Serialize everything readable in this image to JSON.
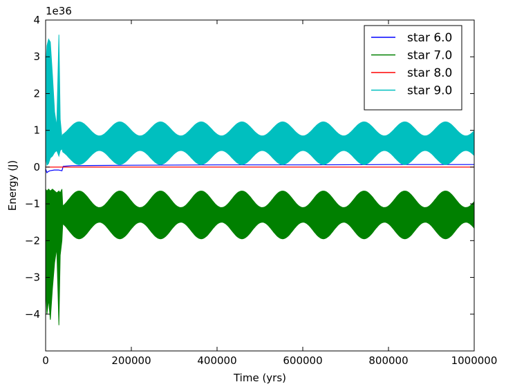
{
  "chart_data": {
    "type": "line",
    "title": "",
    "xlabel": "Time (yrs)",
    "ylabel": "Energy (J)",
    "y_offset_label": "1e36",
    "y_scale_exponent": 36,
    "xlim": [
      0,
      1000000
    ],
    "ylim": [
      -5,
      4
    ],
    "x_ticks": [
      0,
      200000,
      400000,
      600000,
      800000,
      1000000
    ],
    "x_tick_labels": [
      "0",
      "200000",
      "400000",
      "600000",
      "800000",
      "1000000"
    ],
    "y_ticks": [
      -4,
      -3,
      -2,
      -1,
      0,
      1,
      2,
      3,
      4
    ],
    "y_tick_labels": [
      "−4",
      "−3",
      "−2",
      "−1",
      "0",
      "1",
      "2",
      "3",
      "4"
    ],
    "grid": false,
    "legend_position": "top-right",
    "series": [
      {
        "name": "star 6.0",
        "color": "#0000ff",
        "style": "line",
        "x": [
          0,
          3000,
          6000,
          10000,
          20000,
          30000,
          38000,
          41000,
          60000,
          200000,
          400000,
          600000,
          800000,
          1000000
        ],
        "y": [
          -0.05,
          -0.15,
          -0.12,
          -0.1,
          -0.08,
          -0.08,
          -0.1,
          0.02,
          0.04,
          0.05,
          0.06,
          0.06,
          0.07,
          0.07
        ]
      },
      {
        "name": "star 7.0",
        "color": "#008000",
        "style": "band",
        "band_early": {
          "x": [
            0,
            3000,
            7000,
            11000,
            16000,
            21000,
            26000,
            31000,
            34000,
            38000
          ],
          "upper": [
            -0.6,
            -0.65,
            -0.6,
            -0.65,
            -0.6,
            -0.65,
            -0.7,
            -0.65,
            -0.7,
            -0.6
          ],
          "lower": [
            -3.2,
            -4.0,
            -3.6,
            -4.15,
            -3.3,
            -2.6,
            -2.2,
            -4.3,
            -2.4,
            -2.0
          ]
        },
        "band_period": 95000,
        "band_center": -1.3,
        "band_half_max": 0.65,
        "band_half_min": 0.2,
        "x_start": 40000,
        "x_end": 1000000
      },
      {
        "name": "star 8.0",
        "color": "#ff0000",
        "style": "line",
        "x": [
          0,
          1000000
        ],
        "y": [
          0.0,
          0.0
        ]
      },
      {
        "name": "star 9.0",
        "color": "#00bfbf",
        "style": "band",
        "band_early": {
          "x": [
            0,
            3000,
            7000,
            11000,
            16000,
            21000,
            26000,
            31000,
            34000,
            38000
          ],
          "upper": [
            2.6,
            3.3,
            3.48,
            3.4,
            2.5,
            1.5,
            1.1,
            3.6,
            1.3,
            0.8
          ],
          "lower": [
            0.3,
            0.05,
            0.1,
            0.25,
            0.3,
            0.4,
            0.45,
            0.3,
            0.45,
            0.5
          ]
        },
        "band_period": 95000,
        "band_center": 0.65,
        "band_half_max": 0.58,
        "band_half_min": 0.2,
        "x_start": 40000,
        "x_end": 1000000
      }
    ]
  }
}
